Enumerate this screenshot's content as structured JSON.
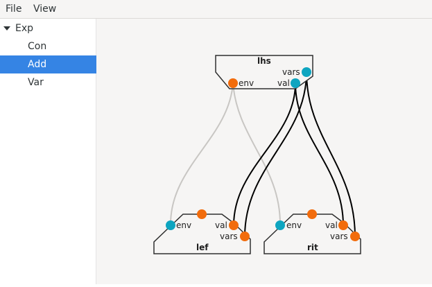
{
  "menubar": {
    "file": "File",
    "view": "View"
  },
  "sidebar": {
    "root": {
      "label": "Exp",
      "expanded": true
    },
    "items": [
      {
        "label": "Con",
        "selected": false
      },
      {
        "label": "Add",
        "selected": true
      },
      {
        "label": "Var",
        "selected": false
      }
    ]
  },
  "graph": {
    "lhs": {
      "title": "lhs",
      "port_vars": "vars",
      "port_val": "val",
      "port_env": "env"
    },
    "lef": {
      "title": "lef",
      "port_env": "env",
      "port_val": "val",
      "port_vars": "vars"
    },
    "rit": {
      "title": "rit",
      "port_env": "env",
      "port_val": "val",
      "port_vars": "vars"
    }
  },
  "colors": {
    "port_cyan": "#0ea5c0",
    "port_orange": "#f26c0c",
    "wire_black": "#000000",
    "wire_grey": "#c8c6c3",
    "selection": "#3584e4"
  }
}
